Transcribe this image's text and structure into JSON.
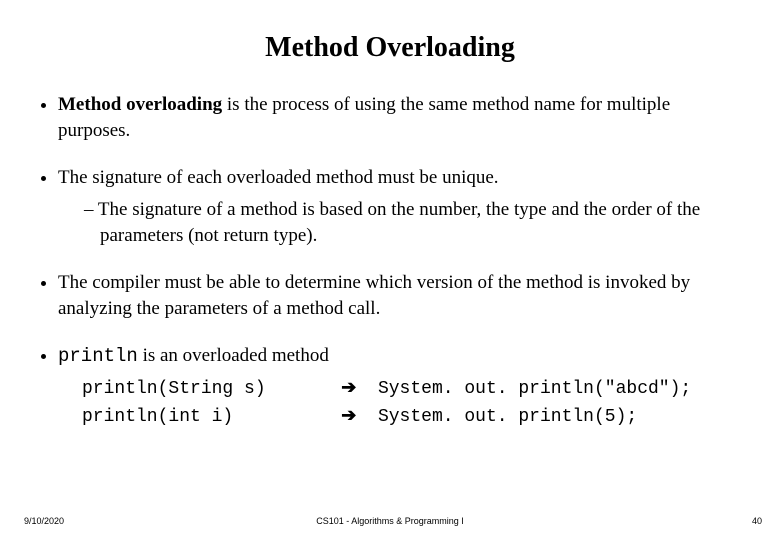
{
  "title": "Method Overloading",
  "bullets": {
    "b1_bold": "Method overloading",
    "b1_rest": " is the process of using the same method name for multiple purposes.",
    "b2_main": "The signature of each overloaded method must be unique.",
    "b2_sub": "– The signature of a method is based on the number, the type and the order of the parameters (not return type).",
    "b3": "The compiler must be able to determine which version of the method is invoked by analyzing the parameters of a method call.",
    "b4_code": "println",
    "b4_rest": " is an overloaded method"
  },
  "code": {
    "row1_left": "println(String s)",
    "row1_right": "System. out. println(\"abcd\");",
    "row2_left": "println(int i)",
    "row2_right": "System. out. println(5);",
    "arrow": "➔",
    "left_col_width": 24
  },
  "footer": {
    "date": "9/10/2020",
    "course": "CS101 - Algorithms & Programming I",
    "page": "40"
  },
  "style": {
    "bg": "#ffffff",
    "text": "#000000",
    "title_fontsize": 28,
    "body_fontsize": 19,
    "code_fontsize": 18,
    "footer_fontsize": 9
  }
}
